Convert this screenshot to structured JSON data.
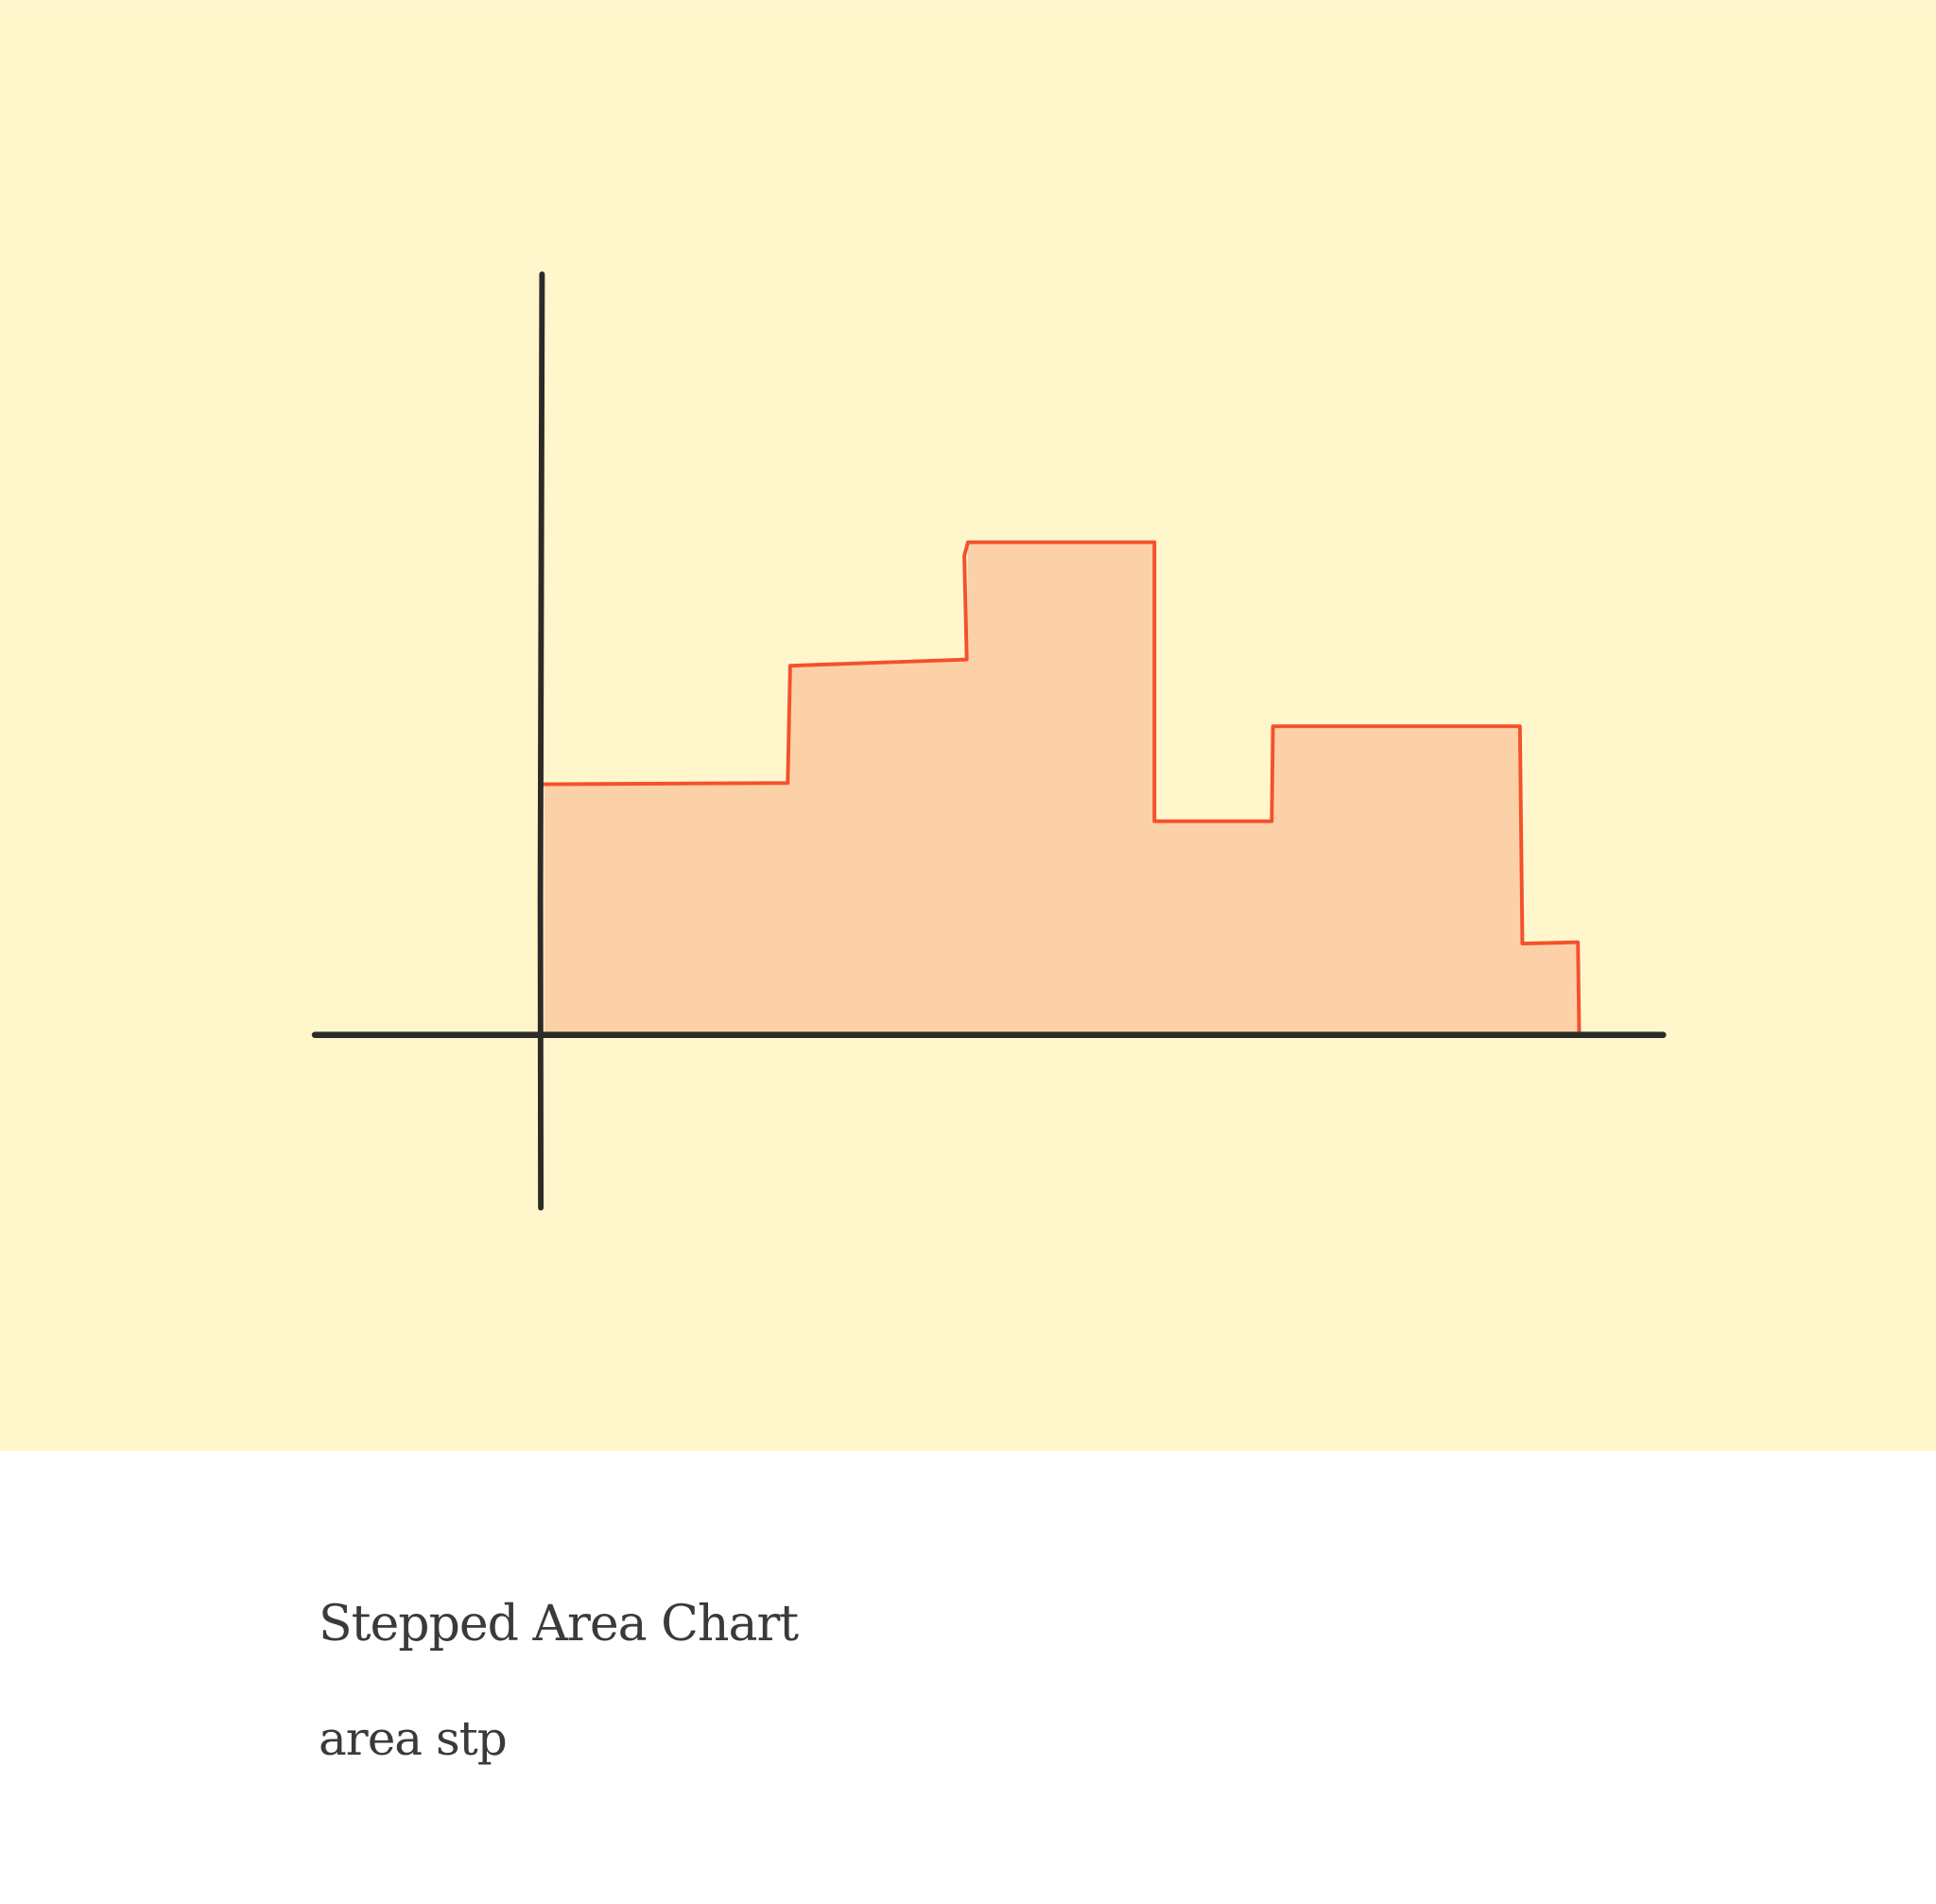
{
  "card": {
    "title": "Stepped Area Chart",
    "tag": "area stp"
  }
}
